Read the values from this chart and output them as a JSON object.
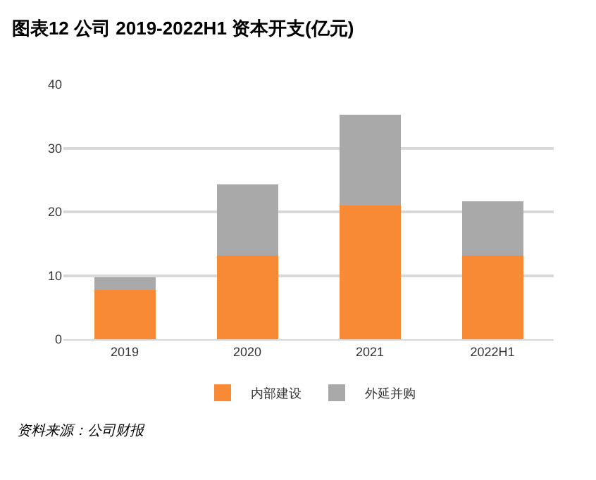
{
  "chart_data": {
    "type": "bar",
    "title": "图表12 公司 2019-2022H1 资本开支(亿元)",
    "stacked": true,
    "categories": [
      "2019",
      "2020",
      "2021",
      "2022H1"
    ],
    "series": [
      {
        "name": "内部建设",
        "color": "#f98a35",
        "values": [
          7.7,
          13.1,
          21.0,
          13.1
        ]
      },
      {
        "name": "外延并购",
        "color": "#a9a9a9",
        "values": [
          2.0,
          11.2,
          14.3,
          8.6
        ]
      }
    ],
    "ylim": [
      0,
      40
    ],
    "yticks": [
      0,
      10,
      20,
      30,
      40
    ],
    "grid": "y",
    "legend": "bottom",
    "annotations": [
      "资料来源：公司财报"
    ]
  }
}
